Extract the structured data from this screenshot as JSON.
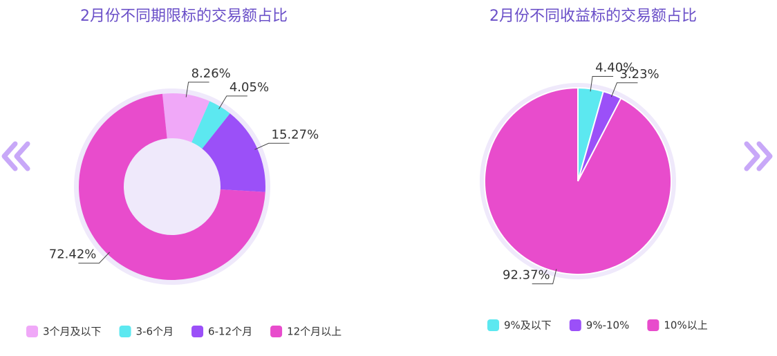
{
  "chart_data": [
    {
      "type": "donut",
      "title": "2月份不同期限标的交易额占比",
      "categories": [
        "3个月及以下",
        "3-6个月",
        "6-12个月",
        "12个月以上"
      ],
      "values": [
        8.26,
        4.05,
        15.27,
        72.42
      ],
      "value_labels": [
        "8.26%",
        "4.05%",
        "15.27%",
        "72.42%"
      ],
      "colors": [
        "#f0a8f8",
        "#5ce8f0",
        "#9b50f8",
        "#e84ccc"
      ],
      "legend": "bottom"
    },
    {
      "type": "pie",
      "title": "2月份不同收益标的交易额占比",
      "categories": [
        "9%及以下",
        "9%-10%",
        "10%以上"
      ],
      "values": [
        4.4,
        3.23,
        92.37
      ],
      "value_labels": [
        "4.40%",
        "3.23%",
        "92.37%"
      ],
      "colors": [
        "#5ce8f0",
        "#9b50f8",
        "#e84ccc"
      ],
      "legend": "bottom"
    }
  ]
}
